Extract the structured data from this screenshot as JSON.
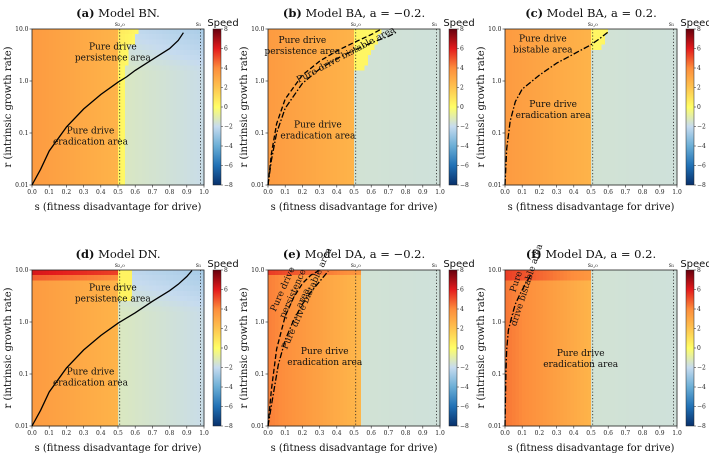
{
  "figure": {
    "colorbar": {
      "label": "Speed",
      "ticks": [
        "8",
        "6",
        "4",
        "2",
        "0",
        "−2",
        "−4",
        "−6",
        "−8"
      ]
    },
    "x_axis": {
      "label": "s (fitness disadvantage for drive)",
      "ticks": [
        "0.0",
        "0.1",
        "0.2",
        "0.3",
        "0.4",
        "0.5",
        "0.6",
        "0.7",
        "0.8",
        "0.9",
        "1.0"
      ]
    },
    "y_axis": {
      "label": "r (intrinsic growth rate)",
      "ticks": [
        "10.0",
        "1.0",
        "0.1",
        "0.01"
      ]
    },
    "s_markers": {
      "s20": "s₂,₀",
      "s1": "s₁"
    }
  },
  "chart_data": [
    {
      "id": "a",
      "type": "heatmap",
      "panel_label": "(a)",
      "title_rest": " Model BN.",
      "xlabel": "s (fitness disadvantage for drive)",
      "ylabel": "r (intrinsic growth rate)",
      "xlim": [
        0,
        1
      ],
      "ylim": [
        0.01,
        10
      ],
      "yscale": "log",
      "zlim": [
        -8,
        8
      ],
      "s20": 0.51,
      "s1": 0.98,
      "annotations": [
        {
          "lines": [
            "Pure drive",
            "persistence area"
          ]
        },
        {
          "lines": [
            "Pure drive",
            "eradication area"
          ]
        }
      ],
      "boundaries": [
        {
          "style": "solid",
          "s": [
            0.0,
            0.05,
            0.1,
            0.2,
            0.3,
            0.4,
            0.5,
            0.55,
            0.6,
            0.7,
            0.8,
            0.85,
            0.88
          ],
          "r": [
            0.01,
            0.02,
            0.045,
            0.13,
            0.29,
            0.55,
            0.95,
            1.2,
            1.6,
            2.6,
            4.2,
            6.0,
            8.5
          ]
        }
      ]
    },
    {
      "id": "b",
      "type": "heatmap",
      "panel_label": "(b)",
      "title_rest": " Model BA, a = −0.2.",
      "xlabel": "s (fitness disadvantage for drive)",
      "ylabel": "r (intrinsic growth rate)",
      "xlim": [
        0,
        1
      ],
      "ylim": [
        0.01,
        10
      ],
      "yscale": "log",
      "zlim": [
        -8,
        8
      ],
      "s20": 0.51,
      "s1": 0.98,
      "annotations": [
        {
          "lines": [
            "Pure drive",
            "persistence area"
          ]
        },
        {
          "lines": [
            "Pure drive bistable area"
          ]
        },
        {
          "lines": [
            "Pure drive",
            "eradication area"
          ]
        }
      ],
      "boundaries": [
        {
          "style": "dashed",
          "s": [
            0.0,
            0.02,
            0.05,
            0.1,
            0.2,
            0.3,
            0.4,
            0.5,
            0.6,
            0.65
          ],
          "r": [
            0.01,
            0.04,
            0.15,
            0.45,
            1.3,
            2.4,
            3.8,
            5.5,
            7.8,
            9.6
          ]
        },
        {
          "style": "dashdot",
          "s": [
            0.0,
            0.02,
            0.05,
            0.1,
            0.2,
            0.3,
            0.4,
            0.5,
            0.6,
            0.7,
            0.75
          ],
          "r": [
            0.01,
            0.03,
            0.1,
            0.3,
            0.9,
            1.7,
            2.7,
            3.9,
            5.4,
            7.2,
            8.8
          ]
        }
      ]
    },
    {
      "id": "c",
      "type": "heatmap",
      "panel_label": "(c)",
      "title_rest": " Model BA, a = 0.2.",
      "xlabel": "s (fitness disadvantage for drive)",
      "ylabel": "r (intrinsic growth rate)",
      "xlim": [
        0,
        1
      ],
      "ylim": [
        0.01,
        10
      ],
      "yscale": "log",
      "zlim": [
        -8,
        8
      ],
      "s20": 0.51,
      "s1": 0.98,
      "annotations": [
        {
          "lines": [
            "Pure drive",
            "bistable area"
          ]
        },
        {
          "lines": [
            "Pure drive",
            "eradication area"
          ]
        }
      ],
      "boundaries": [
        {
          "style": "dashdot",
          "s": [
            0.0,
            0.01,
            0.03,
            0.06,
            0.1,
            0.2,
            0.3,
            0.4,
            0.5,
            0.55,
            0.6
          ],
          "r": [
            0.01,
            0.05,
            0.17,
            0.4,
            0.7,
            1.3,
            2.2,
            3.3,
            5.0,
            6.5,
            8.8
          ]
        }
      ]
    },
    {
      "id": "d",
      "type": "heatmap",
      "panel_label": "(d)",
      "title_rest": " Model DN.",
      "xlabel": "s (fitness disadvantage for drive)",
      "ylabel": "r (intrinsic growth rate)",
      "xlim": [
        0,
        1
      ],
      "ylim": [
        0.01,
        10
      ],
      "yscale": "log",
      "zlim": [
        -8,
        8
      ],
      "s20": 0.51,
      "s1": 0.98,
      "annotations": [
        {
          "lines": [
            "Pure drive",
            "persistence area"
          ]
        },
        {
          "lines": [
            "Pure drive",
            "eradication area"
          ]
        }
      ],
      "boundaries": [
        {
          "style": "solid",
          "s": [
            0.0,
            0.05,
            0.1,
            0.2,
            0.3,
            0.4,
            0.5,
            0.6,
            0.7,
            0.8,
            0.85,
            0.9,
            0.93
          ],
          "r": [
            0.01,
            0.02,
            0.045,
            0.13,
            0.29,
            0.55,
            0.95,
            1.5,
            2.5,
            4.0,
            5.3,
            7.5,
            9.8
          ]
        }
      ]
    },
    {
      "id": "e",
      "type": "heatmap",
      "panel_label": "(e)",
      "title_rest": " Model DA, a = −0.2.",
      "xlabel": "s (fitness disadvantage for drive)",
      "ylabel": "r (intrinsic growth rate)",
      "xlim": [
        0,
        1
      ],
      "ylim": [
        0.01,
        10
      ],
      "yscale": "log",
      "zlim": [
        -8,
        8
      ],
      "s20": 0.51,
      "s1": 0.98,
      "annotations": [
        {
          "lines": [
            "Pure drive",
            "persistence",
            "area"
          ]
        },
        {
          "lines": [
            "Pure drive bistable area"
          ]
        },
        {
          "lines": [
            "Pure drive",
            "eradication area"
          ]
        }
      ],
      "boundaries": [
        {
          "style": "dashed",
          "s": [
            0.0,
            0.02,
            0.05,
            0.1,
            0.15,
            0.2,
            0.25,
            0.3
          ],
          "r": [
            0.01,
            0.05,
            0.3,
            1.3,
            3.0,
            5.5,
            8.0,
            9.9
          ]
        },
        {
          "style": "dashdot",
          "s": [
            0.0,
            0.03,
            0.06,
            0.1,
            0.15,
            0.2,
            0.25,
            0.3,
            0.35
          ],
          "r": [
            0.01,
            0.04,
            0.15,
            0.45,
            1.1,
            2.2,
            3.8,
            6.0,
            9.5
          ]
        }
      ]
    },
    {
      "id": "f",
      "type": "heatmap",
      "panel_label": "(f)",
      "title_rest": " Model DA, a = 0.2.",
      "xlabel": "s (fitness disadvantage for drive)",
      "ylabel": "r (intrinsic growth rate)",
      "xlim": [
        0,
        1
      ],
      "ylim": [
        0.01,
        10
      ],
      "yscale": "log",
      "zlim": [
        -8,
        8
      ],
      "s20": 0.51,
      "s1": 0.98,
      "annotations": [
        {
          "lines": [
            "Pure",
            "drive bistable area"
          ]
        },
        {
          "lines": [
            "Pure drive",
            "eradication area"
          ]
        }
      ],
      "boundaries": [
        {
          "style": "dashdot",
          "s": [
            0.0,
            0.005,
            0.01,
            0.02,
            0.04,
            0.06,
            0.09,
            0.12,
            0.15
          ],
          "r": [
            0.01,
            0.1,
            0.3,
            0.7,
            1.3,
            2.2,
            3.6,
            5.5,
            8.0
          ]
        }
      ]
    }
  ]
}
